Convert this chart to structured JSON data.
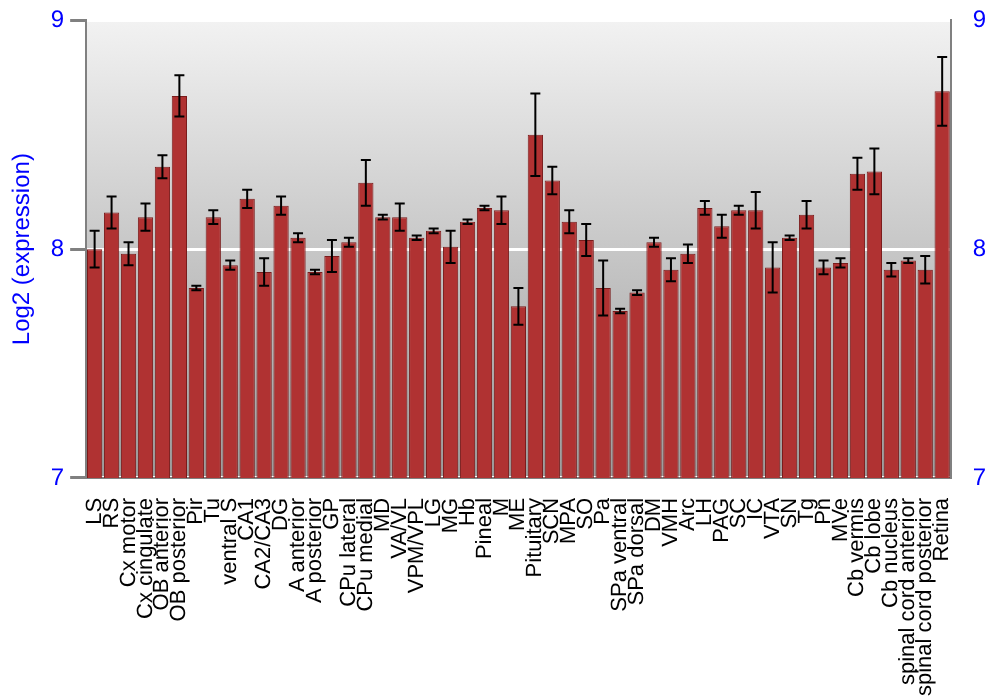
{
  "chart_data": {
    "type": "bar",
    "ylabel": "Log2 (expression)",
    "categories": [
      "LS",
      "RS",
      "Cx motor",
      "Cx cingulate",
      "OB anterior",
      "OB posterior",
      "Pir",
      "Tu",
      "ventral S",
      "CA1",
      "CA2/CA3",
      "DG",
      "A anterior",
      "A posterior",
      "GP",
      "CPu lateral",
      "CPu medial",
      "MD",
      "VA/VL",
      "VPM/VPL",
      "LG",
      "MG",
      "Hb",
      "Pineal",
      "M",
      "ME",
      "Pituitary",
      "SCN",
      "MPA",
      "SO",
      "Pa",
      "SPa ventral",
      "SPa dorsal",
      "DM",
      "VMH",
      "Arc",
      "LH",
      "PAG",
      "SC",
      "IC",
      "VTA",
      "SN",
      "Tg",
      "Pn",
      "MVe",
      "Cb vermis",
      "Cb lobe",
      "Cb nucleus",
      "spinal cord anterior",
      "spinal cord posterior",
      "Retina"
    ],
    "values": [
      8.0,
      8.16,
      7.98,
      8.14,
      8.36,
      8.67,
      7.83,
      8.14,
      7.93,
      8.22,
      7.9,
      8.19,
      8.05,
      7.9,
      7.97,
      8.03,
      8.29,
      8.14,
      8.14,
      8.05,
      8.08,
      8.01,
      8.12,
      8.18,
      8.17,
      7.75,
      8.5,
      8.3,
      8.12,
      8.04,
      7.83,
      7.73,
      7.81,
      8.03,
      7.91,
      7.98,
      8.18,
      8.1,
      8.17,
      8.17,
      7.92,
      8.05,
      8.15,
      7.92,
      7.94,
      8.33,
      8.34,
      7.91,
      7.95,
      7.91,
      8.69
    ],
    "errors": [
      0.08,
      0.07,
      0.05,
      0.06,
      0.05,
      0.09,
      0.01,
      0.03,
      0.02,
      0.04,
      0.06,
      0.04,
      0.02,
      0.01,
      0.07,
      0.02,
      0.1,
      0.01,
      0.06,
      0.01,
      0.01,
      0.07,
      0.01,
      0.01,
      0.06,
      0.08,
      0.18,
      0.06,
      0.05,
      0.07,
      0.12,
      0.01,
      0.01,
      0.02,
      0.05,
      0.04,
      0.03,
      0.05,
      0.02,
      0.08,
      0.11,
      0.01,
      0.06,
      0.03,
      0.02,
      0.07,
      0.1,
      0.03,
      0.01,
      0.06,
      0.15
    ],
    "color": "#b03232",
    "ylim": [
      7,
      9
    ],
    "yticks": [
      7,
      8,
      9
    ],
    "y2lim": [
      7,
      9
    ],
    "y2ticks": [
      7,
      8,
      9
    ],
    "grid": "y"
  }
}
